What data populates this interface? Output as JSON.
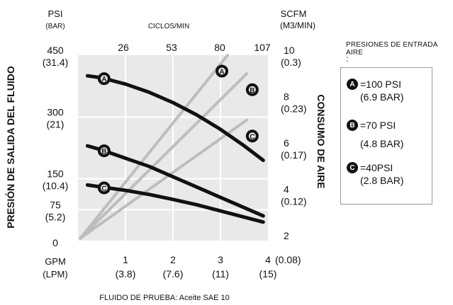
{
  "chart_data": {
    "type": "line",
    "xlabel": "GPM",
    "xlabel_secondary": "(LPM)",
    "x_ticks": [
      "1",
      "2",
      "3",
      "4"
    ],
    "x_ticks_secondary": [
      "(3.8)",
      "(7.6)",
      "(11)",
      "(15)"
    ],
    "x_zero": "0",
    "xlim": [
      0,
      4
    ],
    "top_axis_label": "CICLOS/MIN",
    "top_axis_ticks": [
      "26",
      "53",
      "80",
      "107"
    ],
    "left_axis_label": "PRESIÓN DE SALIDA DEL FLUIDO",
    "left_unit": "PSI",
    "left_unit_secondary": "(BAR)",
    "left_ticks": [
      "450",
      "300",
      "150",
      "75"
    ],
    "left_ticks_secondary": [
      "(31.4)",
      "(21)",
      "(10.4)",
      "(5.2)"
    ],
    "ylim_left": [
      0,
      450
    ],
    "right_axis_label": "CONSUMO DE AIRE",
    "right_unit": "SCFM",
    "right_unit_secondary": "(M3/MIN)",
    "right_ticks": [
      "10",
      "8",
      "6",
      "4",
      "2"
    ],
    "right_ticks_secondary": [
      "(0.3)",
      "(0.23)",
      "(0.17)",
      "(0.12)",
      "(0.08)"
    ],
    "ylim_right": [
      2,
      10
    ],
    "footer": "FLUIDO DE PRUEBA: Aceite SAE 10",
    "pressure_curves": [
      {
        "marker": "A",
        "x": [
          0.2,
          0.5,
          1.0,
          1.5,
          2.0,
          2.5,
          3.0,
          3.5,
          3.9
        ],
        "y": [
          400,
          395,
          380,
          360,
          335,
          305,
          270,
          230,
          195
        ]
      },
      {
        "marker": "B",
        "x": [
          0.2,
          0.5,
          1.0,
          1.5,
          2.0,
          2.5,
          3.0,
          3.5,
          3.9
        ],
        "y": [
          230,
          220,
          200,
          180,
          155,
          130,
          105,
          80,
          60
        ]
      },
      {
        "marker": "C",
        "x": [
          0.2,
          0.5,
          1.0,
          1.5,
          2.0,
          2.5,
          3.0,
          3.5,
          3.9
        ],
        "y": [
          135,
          130,
          122,
          112,
          100,
          87,
          72,
          57,
          45
        ]
      }
    ],
    "air_curves": [
      {
        "marker": "A",
        "x": [
          0.05,
          3.15
        ],
        "y": [
          2.1,
          10.0
        ]
      },
      {
        "marker": "B",
        "x": [
          0.05,
          3.55
        ],
        "y": [
          2.1,
          9.2
        ]
      },
      {
        "marker": "C",
        "x": [
          0.05,
          3.55
        ],
        "y": [
          2.1,
          7.2
        ]
      }
    ],
    "grid": true,
    "colors": {
      "pressure": "#111111",
      "air": "#bdbdbd",
      "grid": "#ffffff",
      "background": "#e9e9e9"
    }
  },
  "legend": {
    "title": "PRESIONES DE ENTRADA AIRE",
    "colon": ":",
    "items": [
      {
        "marker": "A",
        "value": "=100 PSI",
        "sub": "(6.9 BAR)"
      },
      {
        "marker": "B",
        "value": "=70 PSI",
        "sub": "(4.8 BAR)"
      },
      {
        "marker": "C",
        "value": "=40PSI",
        "sub": "(2.8 BAR)"
      }
    ]
  }
}
